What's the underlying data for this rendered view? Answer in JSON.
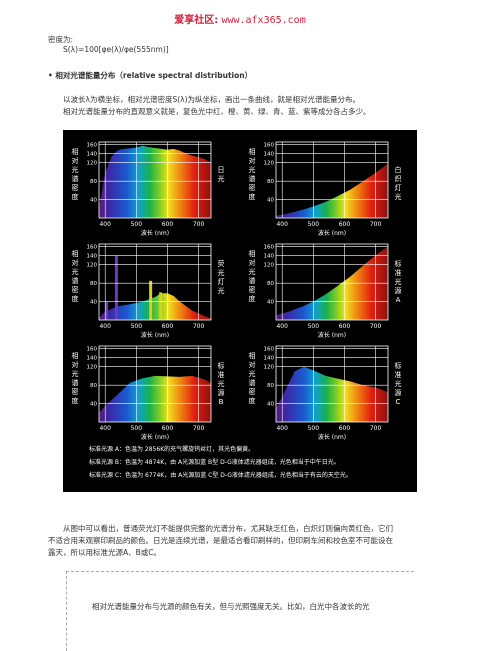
{
  "header": {
    "logo": "爱享社区:",
    "url": "www.afx365.com"
  },
  "intro": {
    "line1": "密度为:",
    "formula": "S(λ)=100[φe(λ)/φe(555nm)]"
  },
  "section": {
    "bullet": "•",
    "title": "相对光谱能量分布（relative spectral distribution）"
  },
  "para1": {
    "l1": "以波长λ为横坐标，相对光谱密度S(λ)为纵坐标，画出一条曲线，就是相对光谱能量分布。",
    "l2": "相对光谱能量分布的直观意义就是，复色光中红、橙、黄、绿、青、蓝、紫等成分各占多少。"
  },
  "chart_data": [
    {
      "type": "area",
      "ylabel": "相对光谱密度",
      "rlabel": "日光",
      "xlabel": "波长 (nm)",
      "x": [
        380,
        400,
        420,
        440,
        460,
        480,
        500,
        520,
        540,
        560,
        580,
        600,
        620,
        640,
        660,
        680,
        700,
        720,
        740
      ],
      "y": [
        20,
        98,
        133,
        147,
        150,
        151,
        153,
        157,
        154,
        152,
        150,
        148,
        150,
        146,
        140,
        135,
        132,
        128,
        120
      ],
      "xticks": [
        400,
        500,
        600,
        700
      ],
      "yticks": [
        40,
        80,
        120,
        140,
        160
      ],
      "xlim": [
        380,
        740
      ],
      "ylim": [
        0,
        165
      ]
    },
    {
      "type": "area",
      "ylabel": "相对光谱密度",
      "rlabel": "白炽灯光",
      "xlabel": "波长 (nm)",
      "x": [
        380,
        420,
        460,
        500,
        540,
        580,
        620,
        660,
        700,
        740
      ],
      "y": [
        5,
        10,
        17,
        25,
        35,
        48,
        62,
        80,
        98,
        118
      ],
      "xticks": [
        400,
        500,
        600,
        700
      ],
      "yticks": [
        40,
        80,
        120,
        140,
        160
      ],
      "xlim": [
        380,
        740
      ],
      "ylim": [
        0,
        165
      ]
    },
    {
      "type": "area",
      "ylabel": "相对光谱密度",
      "rlabel": "荧光灯光",
      "xlabel": "波长 (nm)",
      "x": [
        380,
        400,
        440,
        480,
        520,
        560,
        580,
        600,
        620,
        640,
        680,
        720,
        740
      ],
      "y": [
        5,
        18,
        30,
        34,
        40,
        50,
        58,
        58,
        52,
        40,
        20,
        8,
        4
      ],
      "lines": [
        {
          "x": 404,
          "y": 40
        },
        {
          "x": 436,
          "y": 140
        },
        {
          "x": 546,
          "y": 85
        },
        {
          "x": 578,
          "y": 60
        }
      ],
      "xticks": [
        400,
        500,
        600,
        700
      ],
      "yticks": [
        40,
        80,
        120,
        140,
        160
      ],
      "xlim": [
        380,
        740
      ],
      "ylim": [
        0,
        165
      ]
    },
    {
      "type": "area",
      "ylabel": "相对光谱密度",
      "rlabel": "标准光源A",
      "xlabel": "波长 (nm)",
      "x": [
        380,
        420,
        460,
        500,
        540,
        580,
        620,
        660,
        700,
        740
      ],
      "y": [
        10,
        18,
        28,
        40,
        56,
        75,
        95,
        118,
        140,
        160
      ],
      "xticks": [
        400,
        500,
        600,
        700
      ],
      "yticks": [
        40,
        80,
        120,
        140,
        160
      ],
      "xlim": [
        380,
        740
      ],
      "ylim": [
        0,
        165
      ]
    },
    {
      "type": "area",
      "ylabel": "相对光谱密度",
      "rlabel": "标准光源B",
      "xlabel": "波长 (nm)",
      "x": [
        380,
        400,
        440,
        480,
        520,
        560,
        600,
        640,
        680,
        720,
        740
      ],
      "y": [
        20,
        35,
        60,
        85,
        95,
        100,
        99,
        98,
        100,
        92,
        85
      ],
      "xticks": [
        400,
        500,
        600,
        700
      ],
      "yticks": [
        40,
        80,
        120,
        140,
        160
      ],
      "xlim": [
        380,
        740
      ],
      "ylim": [
        0,
        165
      ]
    },
    {
      "type": "area",
      "ylabel": "相对光谱密度",
      "rlabel": "标准光源C",
      "xlabel": "波长 (nm)",
      "x": [
        380,
        400,
        440,
        470,
        500,
        540,
        580,
        620,
        660,
        700,
        740
      ],
      "y": [
        30,
        55,
        110,
        120,
        112,
        100,
        94,
        88,
        80,
        75,
        65
      ],
      "xticks": [
        400,
        500,
        600,
        700
      ],
      "yticks": [
        40,
        80,
        120,
        140,
        160
      ],
      "xlim": [
        380,
        740
      ],
      "ylim": [
        0,
        165
      ]
    }
  ],
  "legend": {
    "a": "标准光源 A：色温为 2856K的充气螺旋钨丝灯，其光色偏黄。",
    "b": "标准光源 B：色温为 4874K，由 A光源加蓝 B型 D-G液体滤光器组成，光色相当于中午日光。",
    "c": "标准光源 C：色温为 6774K，由 A光源加蓝 C型 D-G液体滤光器组成，光色相当于有云的天空光。"
  },
  "para2": {
    "l1": "从图中可以看出，普通荧光灯不能提供完整的光谱分布，尤其缺乏红色，白炽灯则偏向黄红色，它们",
    "l2": "不适合用来观察印刷品的颜色。日光是连续光谱，是最适合看印刷样的，但印刷车间和校色室不可能设在",
    "l3": "露天，所以用标准光源A、B或C。"
  },
  "para3": {
    "l1": "相对光谱能量分布与光源的颜色有关，但与光照强度无关。比如，白光中各波长的光"
  }
}
